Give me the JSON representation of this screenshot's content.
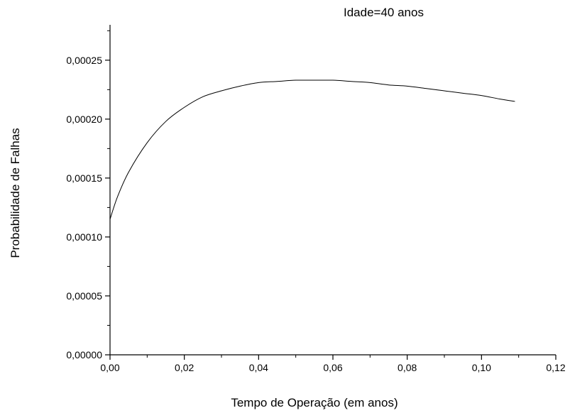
{
  "chart_data": {
    "type": "line",
    "annotation": "Idade=40 anos",
    "xlabel": "Tempo de Operação (em anos)",
    "ylabel": "Probabilidade de Falhas",
    "xlim": [
      0,
      0.12
    ],
    "ylim": [
      0,
      0.00028
    ],
    "x_ticks": [
      "0,00",
      "0,02",
      "0,04",
      "0,06",
      "0,08",
      "0,10",
      "0,12"
    ],
    "x_tick_values": [
      0,
      0.02,
      0.04,
      0.06,
      0.08,
      0.1,
      0.12
    ],
    "y_ticks": [
      "0,00000",
      "0,00005",
      "0,00010",
      "0,00015",
      "0,00020",
      "0,00025"
    ],
    "y_tick_values": [
      0,
      5e-05,
      0.0001,
      0.00015,
      0.0002,
      0.00025
    ],
    "grid": false,
    "series": [
      {
        "x": [
          0,
          0.002,
          0.005,
          0.01,
          0.015,
          0.02,
          0.025,
          0.03,
          0.035,
          0.04,
          0.045,
          0.05,
          0.055,
          0.06,
          0.065,
          0.07,
          0.075,
          0.08,
          0.085,
          0.09,
          0.095,
          0.1,
          0.105,
          0.109
        ],
        "y": [
          0.000115,
          0.000134,
          0.000155,
          0.00018,
          0.000198,
          0.00021,
          0.000219,
          0.000224,
          0.000228,
          0.000231,
          0.000232,
          0.000233,
          0.000233,
          0.000233,
          0.000232,
          0.000231,
          0.000229,
          0.000228,
          0.000226,
          0.000224,
          0.000222,
          0.00022,
          0.000217,
          0.000215
        ]
      }
    ]
  }
}
